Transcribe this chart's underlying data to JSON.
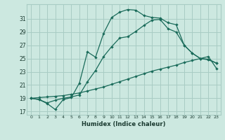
{
  "xlabel": "Humidex (Indice chaleur)",
  "bg_color": "#cce8e0",
  "grid_color": "#a8ccc4",
  "line_color": "#1a6b5a",
  "xlim": [
    -0.5,
    23.5
  ],
  "ylim": [
    16.5,
    33.2
  ],
  "xticks": [
    0,
    1,
    2,
    3,
    4,
    5,
    6,
    7,
    8,
    9,
    10,
    11,
    12,
    13,
    14,
    15,
    16,
    17,
    18,
    19,
    20,
    21,
    22,
    23
  ],
  "yticks": [
    17,
    19,
    21,
    23,
    25,
    27,
    29,
    31
  ],
  "seriesA_x": [
    0,
    1,
    2,
    3,
    4,
    5,
    6,
    7,
    8,
    9,
    10,
    11,
    12,
    13,
    14,
    15,
    16,
    17,
    18,
    19,
    20,
    21,
    22,
    23
  ],
  "seriesA_y": [
    19.0,
    18.8,
    18.2,
    17.3,
    18.8,
    19.1,
    21.3,
    26.0,
    25.2,
    28.8,
    31.2,
    32.0,
    32.4,
    32.3,
    31.5,
    31.2,
    31.1,
    30.4,
    30.1,
    27.0,
    25.8,
    25.0,
    24.9,
    24.3
  ],
  "seriesB_x": [
    0,
    1,
    2,
    3,
    4,
    5,
    6,
    7,
    8,
    9,
    10,
    11,
    12,
    13,
    14,
    15,
    16,
    17,
    18,
    19,
    20,
    21,
    22,
    23
  ],
  "seriesB_y": [
    19.0,
    18.8,
    18.3,
    18.7,
    19.0,
    19.2,
    19.5,
    21.5,
    23.2,
    25.3,
    26.8,
    28.1,
    28.3,
    29.1,
    30.0,
    30.8,
    30.9,
    29.5,
    29.0,
    27.0,
    25.8,
    25.0,
    24.8,
    24.3
  ],
  "seriesC_x": [
    0,
    1,
    2,
    3,
    4,
    5,
    6,
    7,
    8,
    9,
    10,
    11,
    12,
    13,
    14,
    15,
    16,
    17,
    18,
    19,
    20,
    21,
    22,
    23
  ],
  "seriesC_y": [
    19.0,
    19.1,
    19.2,
    19.3,
    19.4,
    19.6,
    19.8,
    20.1,
    20.4,
    20.7,
    21.1,
    21.5,
    21.9,
    22.3,
    22.7,
    23.1,
    23.4,
    23.7,
    24.0,
    24.4,
    24.7,
    25.0,
    25.3,
    23.5
  ]
}
